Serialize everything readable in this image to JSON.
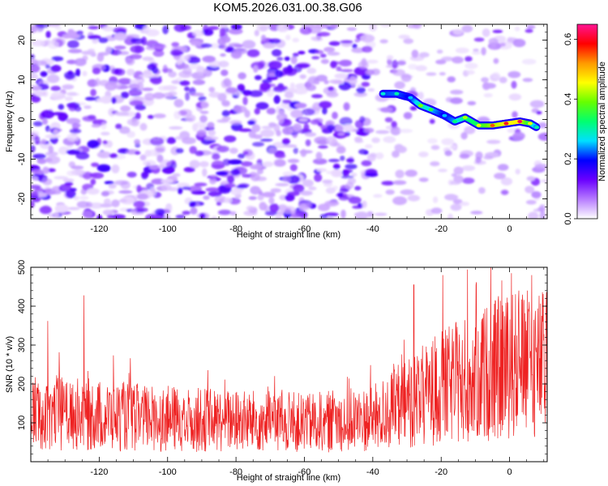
{
  "figure": {
    "title": "KOM5.2026.031.00.38.G06"
  },
  "chart_data": [
    {
      "type": "heatmap",
      "title": "KOM5.2026.031.00.38.G06",
      "xlabel": "Height of straight line (km)",
      "ylabel": "Frequency (Hz)",
      "xlim": [
        -140,
        11
      ],
      "ylim": [
        -25,
        24
      ],
      "xticks": [
        -120,
        -100,
        -80,
        -60,
        -40,
        -20,
        0
      ],
      "yticks": [
        -20,
        -10,
        0,
        10,
        20
      ],
      "colorbar": {
        "label": "Normalized spectral amplitude",
        "range": [
          0.0,
          0.65
        ],
        "ticks": [
          0.0,
          0.2,
          0.4,
          0.6
        ],
        "colormap": [
          "#ffffff",
          "#b77cff",
          "#6a00ff",
          "#0000ff",
          "#00e0ff",
          "#00ff70",
          "#66ff00",
          "#ffff00",
          "#ff9900",
          "#ff0000",
          "#ff1493"
        ]
      },
      "ridge": {
        "description_points": [
          {
            "x": -37,
            "y": 6.5,
            "value": 0.28
          },
          {
            "x": -33,
            "y": 6.5,
            "value": 0.3
          },
          {
            "x": -29,
            "y": 5.5,
            "value": 0.25
          },
          {
            "x": -26,
            "y": 3.5,
            "value": 0.4
          },
          {
            "x": -23,
            "y": 2.5,
            "value": 0.35
          },
          {
            "x": -19,
            "y": 1.0,
            "value": 0.25
          },
          {
            "x": -16,
            "y": -0.5,
            "value": 0.32
          },
          {
            "x": -13,
            "y": 0.5,
            "value": 0.42
          },
          {
            "x": -9,
            "y": -1.5,
            "value": 0.45
          },
          {
            "x": -5,
            "y": -1.5,
            "value": 0.55
          },
          {
            "x": -1,
            "y": -1.0,
            "value": 0.6
          },
          {
            "x": 3,
            "y": -0.5,
            "value": 0.62
          },
          {
            "x": 6,
            "y": -1.0,
            "value": 0.45
          },
          {
            "x": 8,
            "y": -2.0,
            "value": 0.3
          }
        ]
      }
    },
    {
      "type": "line",
      "xlabel": "Height of straight line (km)",
      "ylabel": "SNR (10 * v/v)",
      "xlim": [
        -140,
        11
      ],
      "ylim": [
        0,
        500
      ],
      "xticks": [
        -120,
        -100,
        -80,
        -60,
        -40,
        -20,
        0
      ],
      "yticks": [
        100,
        200,
        300,
        400,
        500
      ],
      "series": [
        {
          "name": "SNR",
          "color": "#ee2222",
          "x_range": [
            -140,
            11
          ],
          "baseline_mean_by_x": [
            [
              -140,
              130
            ],
            [
              -120,
              120
            ],
            [
              -100,
              110
            ],
            [
              -80,
              105
            ],
            [
              -60,
              100
            ],
            [
              -40,
              110
            ],
            [
              -30,
              150
            ],
            [
              -20,
              190
            ],
            [
              -10,
              220
            ],
            [
              0,
              250
            ],
            [
              11,
              250
            ]
          ],
          "peaks": [
            {
              "x": -124.5,
              "y": 428
            },
            {
              "x": -135,
              "y": 362
            },
            {
              "x": -28,
              "y": 455
            },
            {
              "x": -19.5,
              "y": 480
            },
            {
              "x": -5.5,
              "y": 500
            },
            {
              "x": 0.5,
              "y": 485
            },
            {
              "x": 6.5,
              "y": 480
            }
          ]
        }
      ]
    }
  ]
}
